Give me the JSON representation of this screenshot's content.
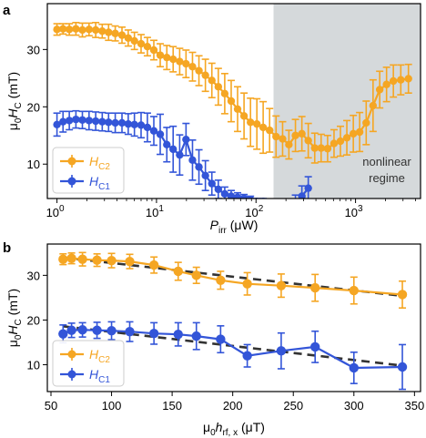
{
  "figure": {
    "panels": [
      "a",
      "b"
    ]
  },
  "chart_data": [
    {
      "type": "line",
      "panel": "a",
      "xscale": "log",
      "xlabel_main": "P",
      "xlabel_sub": "irr",
      "xlabel_unit": " (μW)",
      "ylabel_prefix": "μ",
      "ylabel_sub0": "0",
      "ylabel_main": "H",
      "ylabel_subC": "C",
      "ylabel_unit": " (mT)",
      "xlim": [
        0.8,
        4500
      ],
      "ylim": [
        4,
        38
      ],
      "yticks": [
        10,
        20,
        30
      ],
      "xticks": [
        {
          "value": 1,
          "base": "10",
          "exp": "0"
        },
        {
          "value": 10,
          "base": "10",
          "exp": "1"
        },
        {
          "value": 100,
          "base": "10",
          "exp": "2"
        },
        {
          "value": 1000,
          "base": "10",
          "exp": "3"
        }
      ],
      "shaded_region": {
        "from": 150,
        "to": 4500,
        "label_lines": [
          "nonlinear",
          "regime"
        ],
        "color": "#d5d9db"
      },
      "legend": {
        "position": "bottom-left"
      },
      "series": [
        {
          "name_main": "H",
          "name_sub": "C2",
          "color": "#f5a623",
          "x": [
            1.0,
            1.15,
            1.33,
            1.55,
            1.8,
            2.1,
            2.45,
            2.85,
            3.3,
            3.85,
            4.5,
            5.2,
            6.0,
            7.0,
            8.1,
            9.4,
            10.9,
            12.7,
            14.7,
            17.1,
            19.8,
            23,
            26.7,
            31,
            36,
            41.8,
            48.5,
            56.3,
            65.3,
            75.8,
            88,
            102,
            118,
            137,
            159,
            185,
            214,
            249,
            289,
            335,
            389,
            451,
            524,
            608,
            705,
            818,
            950,
            1100,
            1280,
            1500,
            1750,
            2050,
            2400,
            2850,
            3400
          ],
          "y": [
            33.5,
            33.6,
            33.5,
            33.6,
            33.4,
            33.5,
            33.4,
            33.2,
            33.0,
            32.8,
            32.5,
            32.0,
            31.5,
            31.0,
            30.5,
            29.9,
            29.0,
            28.6,
            28.3,
            27.9,
            27.5,
            27.0,
            26.3,
            25.5,
            24.6,
            23.5,
            22.3,
            21.0,
            19.6,
            18.4,
            17.3,
            17.0,
            16.4,
            15.9,
            14.8,
            14.4,
            13.4,
            15.0,
            15.3,
            14.1,
            12.8,
            12.8,
            12.7,
            13.6,
            14.0,
            14.6,
            15.3,
            15.6,
            17.2,
            20.2,
            23.0,
            23.9,
            24.5,
            24.7,
            24.9
          ],
          "err": [
            1.0,
            0.9,
            1.0,
            1.1,
            1.2,
            1.1,
            1.3,
            1.2,
            1.4,
            1.3,
            1.4,
            1.4,
            1.5,
            1.6,
            1.6,
            1.7,
            2.0,
            2.1,
            2.2,
            2.3,
            2.4,
            2.5,
            2.6,
            2.8,
            3.0,
            3.2,
            3.5,
            3.6,
            3.9,
            4.0,
            4.2,
            4.4,
            4.5,
            3.8,
            3.6,
            3.0,
            2.5,
            2.8,
            3.0,
            3.0,
            2.6,
            2.4,
            2.3,
            2.4,
            2.6,
            3.0,
            3.2,
            3.4,
            3.8,
            4.5,
            3.2,
            3.0,
            2.8,
            2.6,
            2.5
          ]
        },
        {
          "name_main": "H",
          "name_sub": "C1",
          "color": "#3355d8",
          "x": [
            1.0,
            1.15,
            1.33,
            1.55,
            1.8,
            2.1,
            2.45,
            2.85,
            3.3,
            3.85,
            4.5,
            5.2,
            6.0,
            7.0,
            8.1,
            9.4,
            10.9,
            12.7,
            14.7,
            17.1,
            19.8,
            23,
            26.7,
            31,
            36,
            41.8,
            48.5,
            56.3,
            65.3,
            75.8,
            88,
            102,
            118,
            137,
            159,
            185,
            214,
            249,
            289,
            335
          ],
          "y": [
            16.9,
            17.4,
            17.6,
            17.8,
            17.7,
            17.6,
            17.5,
            17.4,
            17.3,
            17.2,
            17.2,
            17.0,
            16.9,
            16.8,
            16.4,
            15.8,
            15.2,
            13.4,
            12.6,
            11.6,
            14.3,
            10.7,
            9.5,
            8.0,
            6.6,
            5.6,
            4.8,
            4.4,
            4.2,
            4.0,
            3.8,
            3.5,
            3.5,
            3.4,
            3.3,
            3.1,
            3.0,
            3.4,
            4.4,
            5.8
          ],
          "err": [
            2.0,
            1.8,
            1.6,
            1.5,
            1.5,
            1.6,
            1.6,
            1.6,
            1.6,
            1.7,
            1.7,
            1.8,
            2.0,
            2.2,
            2.5,
            2.5,
            3.5,
            3.0,
            4.0,
            3.5,
            2.8,
            3.5,
            3.0,
            2.6,
            2.0,
            1.6,
            1.2,
            1.0,
            0.8,
            0.7,
            0.6,
            0.5,
            0.5,
            0.5,
            0.6,
            0.7,
            0.8,
            1.2,
            1.8,
            2.0
          ]
        }
      ]
    },
    {
      "type": "line",
      "panel": "b",
      "xscale": "linear",
      "xlabel_prefix": "μ",
      "xlabel_sub0": "0",
      "xlabel_main": "h",
      "xlabel_sub": "rf, x",
      "xlabel_unit": " (μT)",
      "ylabel_prefix": "μ",
      "ylabel_sub0": "0",
      "ylabel_main": "H",
      "ylabel_subC": "C",
      "ylabel_unit": " (mT)",
      "xlim": [
        47,
        355
      ],
      "ylim": [
        4,
        37
      ],
      "xticks": [
        50,
        100,
        150,
        200,
        250,
        300,
        350
      ],
      "yticks": [
        10,
        20,
        30
      ],
      "legend": {
        "position": "bottom-left"
      },
      "series": [
        {
          "name_main": "H",
          "name_sub": "C2",
          "color": "#f5a623",
          "x": [
            60,
            67,
            76,
            88,
            100,
            115,
            135,
            155,
            170,
            190,
            212,
            240,
            268,
            300,
            340
          ],
          "y": [
            33.6,
            33.8,
            33.6,
            33.4,
            33.3,
            33.1,
            32.3,
            30.9,
            30.0,
            28.9,
            28.1,
            27.7,
            27.2,
            26.6,
            25.7
          ],
          "err": [
            1.2,
            1.2,
            1.5,
            1.4,
            1.6,
            1.6,
            1.8,
            2.0,
            1.8,
            2.0,
            2.5,
            2.6,
            3.0,
            3.0,
            3.0
          ]
        },
        {
          "name_main": "H",
          "name_sub": "C1",
          "color": "#3355d8",
          "x": [
            60,
            67,
            76,
            88,
            100,
            115,
            135,
            155,
            170,
            190,
            212,
            240,
            268,
            300,
            340
          ],
          "y": [
            16.9,
            17.7,
            17.8,
            17.7,
            17.6,
            17.4,
            17.0,
            16.8,
            16.4,
            15.7,
            12.0,
            13.1,
            14.0,
            9.3,
            9.5
          ],
          "err": [
            2.0,
            1.6,
            1.6,
            1.8,
            2.0,
            2.2,
            2.4,
            2.6,
            3.0,
            3.0,
            2.5,
            4.0,
            3.5,
            3.5,
            5.0
          ]
        }
      ],
      "fit_lines": [
        {
          "style": "dashed",
          "color": "#333333",
          "x": [
            60,
            340
          ],
          "y": [
            34.0,
            25.4
          ]
        },
        {
          "style": "dashed",
          "color": "#333333",
          "x": [
            60,
            340
          ],
          "y": [
            18.6,
            9.8
          ]
        }
      ]
    }
  ]
}
